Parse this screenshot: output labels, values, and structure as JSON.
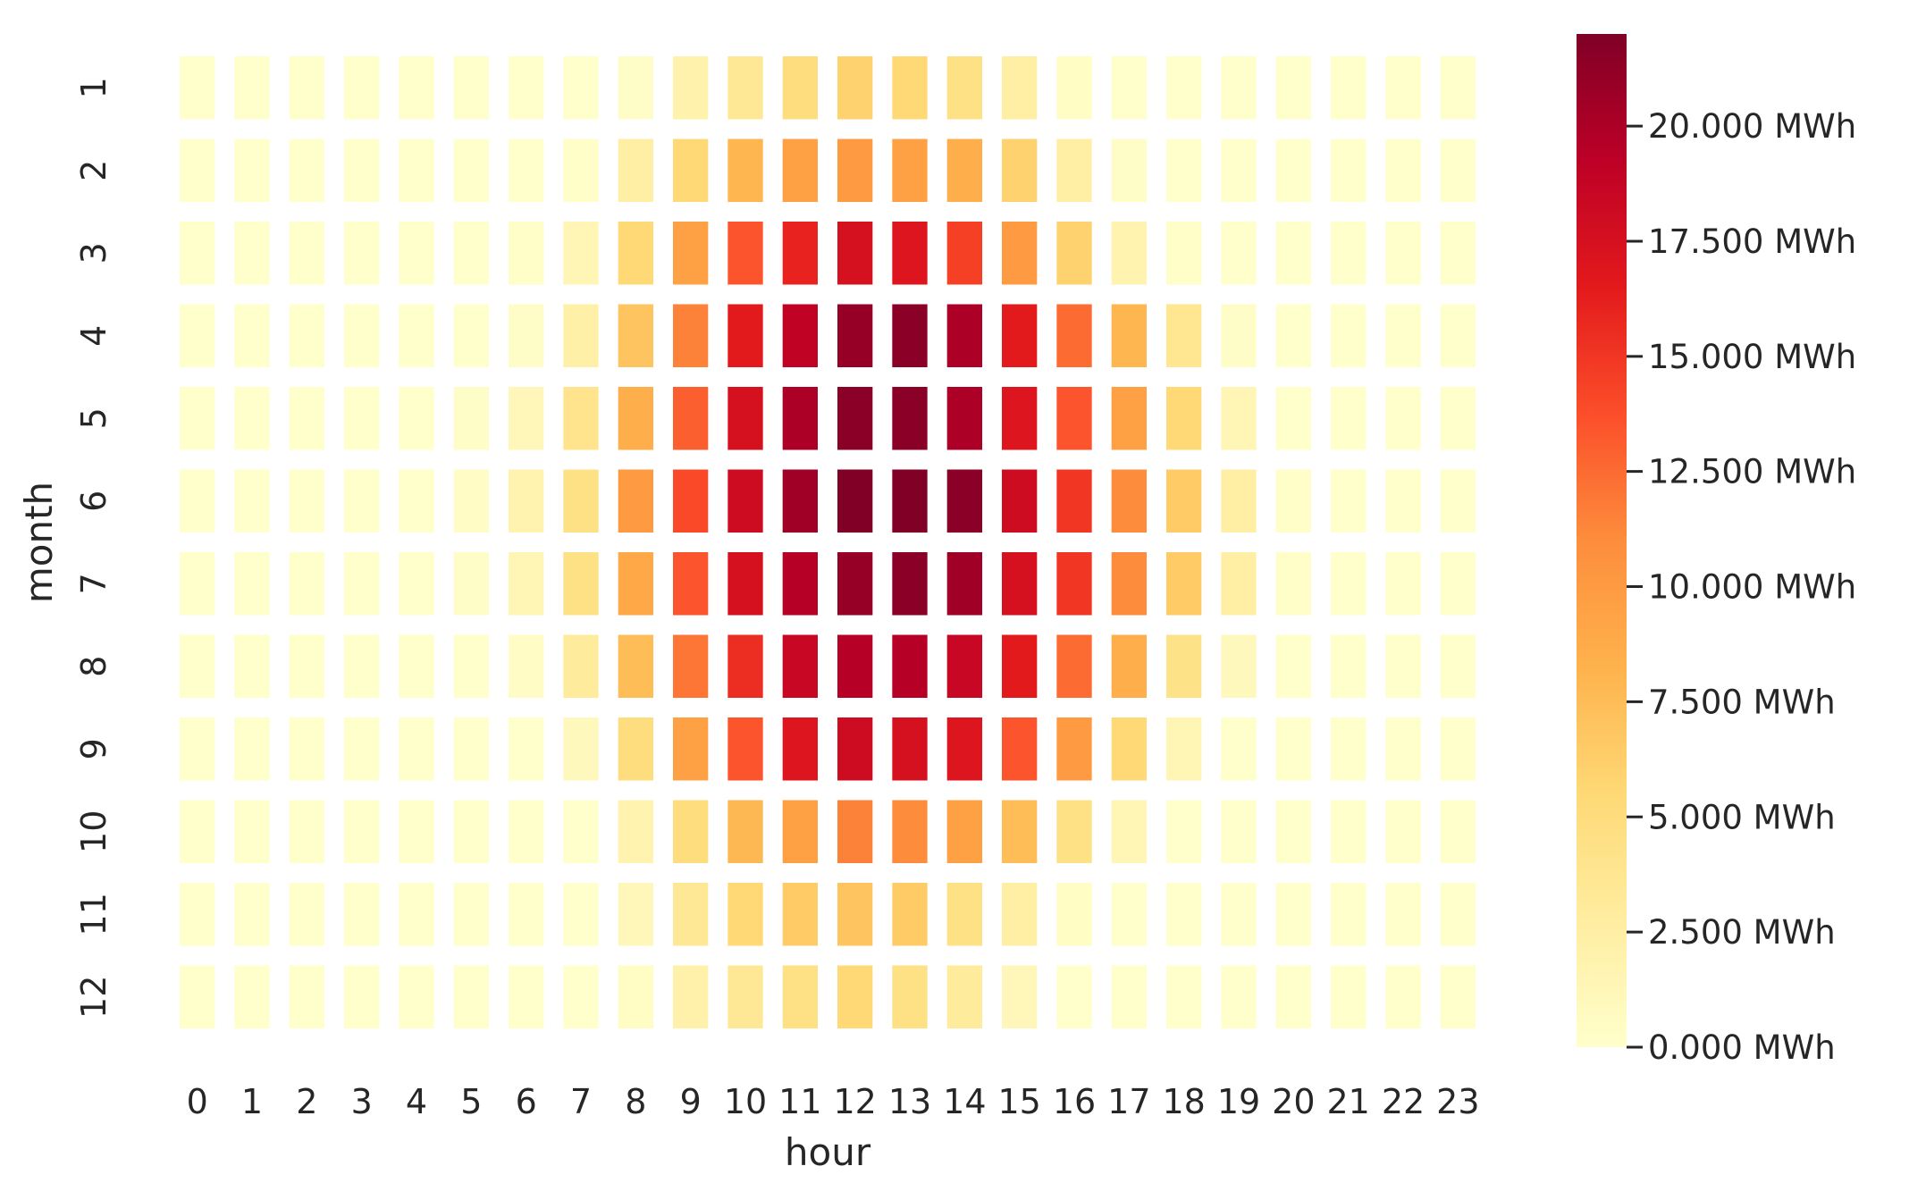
{
  "chart_data": {
    "type": "heatmap",
    "title": "",
    "xlabel": "hour",
    "ylabel": "month",
    "x_categories": [
      "0",
      "1",
      "2",
      "3",
      "4",
      "5",
      "6",
      "7",
      "8",
      "9",
      "10",
      "11",
      "12",
      "13",
      "14",
      "15",
      "16",
      "17",
      "18",
      "19",
      "20",
      "21",
      "22",
      "23"
    ],
    "y_categories": [
      "1",
      "2",
      "3",
      "4",
      "5",
      "6",
      "7",
      "8",
      "9",
      "10",
      "11",
      "12"
    ],
    "colormap": "YlOrRd",
    "colorbar": {
      "vmin": 0,
      "vmax": 22000,
      "ticks": [
        0,
        2500,
        5000,
        7500,
        10000,
        12500,
        15000,
        17500,
        20000
      ],
      "tick_labels": [
        "0.000 MWh",
        "2.500 MWh",
        "5.000 MWh",
        "7.500 MWh",
        "10.000 MWh",
        "12.500 MWh",
        "15.000 MWh",
        "17.500 MWh",
        "20.000 MWh"
      ]
    },
    "values": [
      [
        0,
        0,
        0,
        0,
        0,
        0,
        0,
        0,
        300,
        2000,
        3500,
        5000,
        6000,
        5500,
        4500,
        2500,
        500,
        0,
        0,
        0,
        0,
        0,
        0,
        0
      ],
      [
        0,
        0,
        0,
        0,
        0,
        0,
        0,
        200,
        2500,
        5500,
        8000,
        9500,
        10000,
        9500,
        8500,
        6000,
        2500,
        300,
        0,
        0,
        0,
        0,
        0,
        0
      ],
      [
        0,
        0,
        0,
        0,
        0,
        0,
        200,
        1500,
        5500,
        9500,
        13500,
        16000,
        17500,
        17000,
        14500,
        10000,
        6000,
        1800,
        200,
        0,
        0,
        0,
        0,
        0
      ],
      [
        0,
        0,
        0,
        0,
        0,
        0,
        300,
        2300,
        7000,
        11500,
        16500,
        19000,
        21000,
        21500,
        20000,
        16500,
        12500,
        8000,
        3700,
        300,
        0,
        0,
        0,
        0
      ],
      [
        0,
        0,
        0,
        0,
        0,
        300,
        1200,
        4000,
        8500,
        13000,
        17500,
        20000,
        21500,
        21500,
        20000,
        17000,
        13500,
        9500,
        5500,
        1500,
        0,
        0,
        0,
        0
      ],
      [
        0,
        0,
        0,
        0,
        0,
        400,
        1800,
        4500,
        10000,
        14000,
        18000,
        20500,
        22500,
        23000,
        21500,
        18000,
        15000,
        11000,
        6500,
        2500,
        200,
        0,
        0,
        0
      ],
      [
        0,
        0,
        0,
        0,
        0,
        300,
        1500,
        4500,
        9000,
        13500,
        17500,
        19500,
        21000,
        21500,
        20500,
        17500,
        15000,
        11000,
        6500,
        2500,
        200,
        0,
        0,
        0
      ],
      [
        0,
        0,
        0,
        0,
        0,
        0,
        400,
        3000,
        7500,
        12000,
        15500,
        18500,
        19500,
        19500,
        18500,
        16500,
        12500,
        8500,
        4300,
        1000,
        0,
        0,
        0,
        0
      ],
      [
        0,
        0,
        0,
        0,
        0,
        0,
        0,
        1000,
        5000,
        9500,
        13500,
        17000,
        18000,
        17500,
        17000,
        13500,
        10000,
        5500,
        1500,
        0,
        0,
        0,
        0,
        0
      ],
      [
        0,
        0,
        0,
        0,
        0,
        0,
        0,
        0,
        1800,
        5000,
        7800,
        9500,
        11500,
        11000,
        9500,
        7500,
        4500,
        1500,
        0,
        0,
        0,
        0,
        0,
        0
      ],
      [
        0,
        0,
        0,
        0,
        0,
        0,
        0,
        0,
        1200,
        3500,
        5500,
        6500,
        7000,
        6500,
        4500,
        2500,
        500,
        0,
        0,
        0,
        0,
        0,
        0,
        0
      ],
      [
        0,
        0,
        0,
        0,
        0,
        0,
        0,
        0,
        500,
        2200,
        3500,
        4500,
        5500,
        4500,
        3000,
        1200,
        0,
        0,
        0,
        0,
        0,
        0,
        0,
        0
      ]
    ]
  }
}
